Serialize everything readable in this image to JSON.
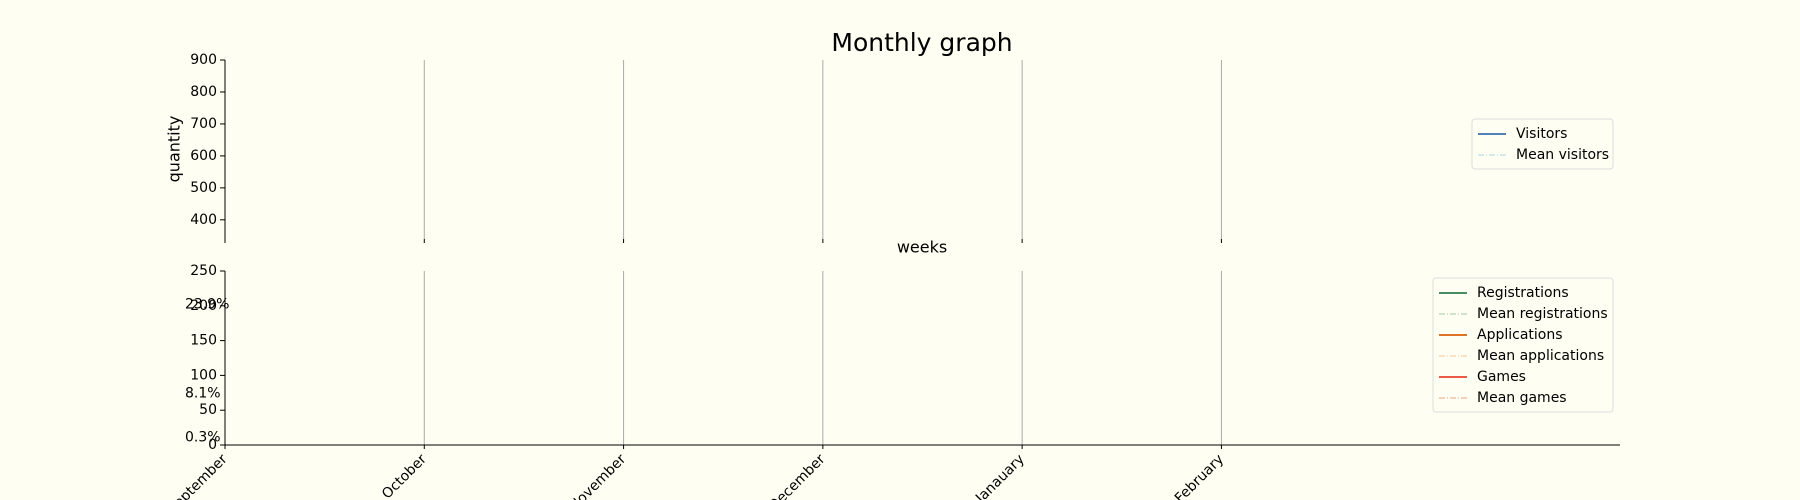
{
  "chart_data": [
    {
      "type": "line",
      "title": "Monthly graph",
      "y_label": "quantity",
      "x_label": "weeks",
      "xlim": [
        0,
        7
      ],
      "xticks": [
        0,
        1,
        2,
        3,
        4,
        5
      ],
      "ylim": [
        340,
        900
      ],
      "yticks": [
        400,
        500,
        600,
        700,
        800,
        900
      ],
      "grid": true,
      "legend": "right",
      "series": [
        {
          "name": "Visitors",
          "color": "#3a6fb0",
          "linestyle": "solid"
        },
        {
          "name": "Mean visitors",
          "color": "#a8d4e4",
          "linestyle": "dashdot"
        }
      ]
    },
    {
      "type": "line",
      "categories": [
        "September",
        "October",
        "November",
        "December",
        "Janauary",
        "February"
      ],
      "xlim": [
        0,
        7
      ],
      "ylim": [
        0,
        250
      ],
      "yticks": [
        0,
        50,
        100,
        150,
        200,
        250
      ],
      "grid": true,
      "legend": "upper right",
      "series": [
        {
          "name": "Registrations",
          "color": "#2e7d4f",
          "linestyle": "solid"
        },
        {
          "name": "Mean registrations",
          "color": "#9fc9a8",
          "linestyle": "dashdot"
        },
        {
          "name": "Applications",
          "color": "#d95f0e",
          "linestyle": "solid"
        },
        {
          "name": "Mean applications",
          "color": "#f5c69a",
          "linestyle": "dashdot"
        },
        {
          "name": "Games",
          "color": "#e8432e",
          "linestyle": "solid"
        },
        {
          "name": "Mean games",
          "color": "#f0a080",
          "linestyle": "dashdot"
        }
      ],
      "annotations": [
        {
          "text": "23.9%",
          "y": 202,
          "color": "#a04000"
        },
        {
          "text": "8.1%",
          "y": 74,
          "color": "#a04000"
        },
        {
          "text": "0.3%",
          "y": 11,
          "color": "#a04000"
        }
      ]
    }
  ]
}
